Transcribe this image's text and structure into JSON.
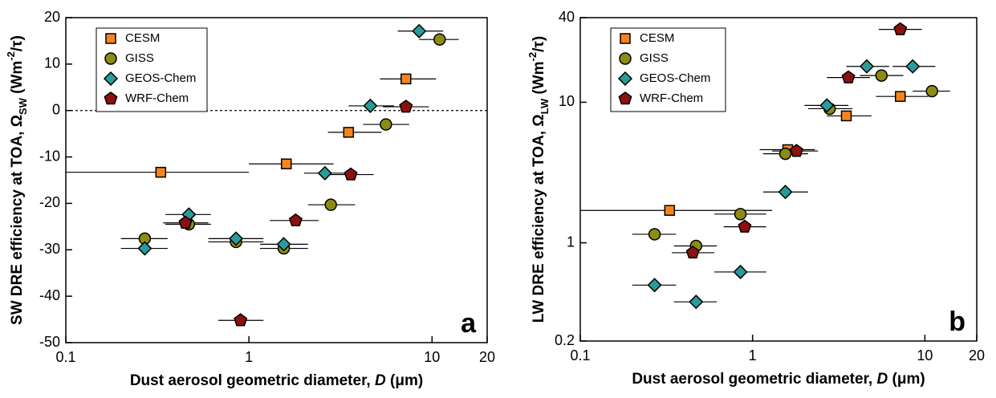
{
  "chart_data": [
    {
      "type": "scatter",
      "panel_label": "a",
      "xlabel": [
        {
          "text": "Dust aerosol geometric diameter, "
        },
        {
          "text": "D",
          "style": "italic"
        },
        {
          "text": " (μm)"
        }
      ],
      "ylabel": [
        {
          "text": "SW DRE efficiency at TOA, Ω"
        },
        {
          "text": "SW",
          "shift": "sub"
        },
        {
          "text": " (Wm"
        },
        {
          "text": "-2",
          "shift": "super"
        },
        {
          "text": "/τ)"
        }
      ],
      "xlim": [
        0.1,
        20
      ],
      "xticks": [
        0.1,
        1,
        10,
        20
      ],
      "xlog": true,
      "ylim": [
        -50,
        20
      ],
      "yticks": [
        20,
        10,
        0,
        -10,
        -20,
        -30,
        -40,
        -50
      ],
      "ylog": false,
      "reference_line": 0,
      "legend": "upper left",
      "series": [
        {
          "name": "CESM",
          "color": "#f7841f",
          "marker": "square",
          "x": [
            0.33,
            1.6,
            3.5,
            7.2
          ],
          "values": [
            -13.3,
            -11.5,
            -4.7,
            6.8
          ],
          "x_low": [
            0.1,
            1.0,
            2.7,
            5.2
          ],
          "x_high": [
            1.0,
            2.9,
            5.3,
            10.5
          ]
        },
        {
          "name": "GISS",
          "color": "#8c8c14",
          "marker": "circle",
          "x": [
            0.27,
            0.47,
            0.85,
            1.55,
            2.8,
            5.6,
            11
          ],
          "values": [
            -27.6,
            -24.5,
            -28.3,
            -29.7,
            -20.3,
            -3,
            15.3
          ],
          "x_low": [
            0.2,
            0.35,
            0.6,
            1.15,
            2.1,
            4.2,
            8.5
          ],
          "x_high": [
            0.36,
            0.62,
            1.2,
            2.1,
            3.8,
            7.5,
            14
          ]
        },
        {
          "name": "GEOS-Chem",
          "color": "#2a9a9a",
          "marker": "diamond",
          "x": [
            0.27,
            0.47,
            0.85,
            1.55,
            2.6,
            4.6,
            8.5
          ],
          "values": [
            -29.7,
            -22.4,
            -27.6,
            -28.8,
            -13.5,
            1,
            17.1
          ],
          "x_low": [
            0.2,
            0.35,
            0.6,
            1.15,
            2.0,
            3.5,
            6.5
          ],
          "x_high": [
            0.36,
            0.62,
            1.2,
            2.1,
            3.6,
            6.2,
            11.5
          ]
        },
        {
          "name": "WRF-Chem",
          "color": "#8b1010",
          "marker": "pentagon",
          "x": [
            0.45,
            0.9,
            1.8,
            3.6,
            7.2
          ],
          "values": [
            -24.2,
            -45.2,
            -23.7,
            -13.8,
            0.8
          ],
          "x_low": [
            0.34,
            0.68,
            1.3,
            2.7,
            5.4
          ],
          "x_high": [
            0.6,
            1.2,
            2.4,
            4.8,
            9.6
          ]
        }
      ]
    },
    {
      "type": "scatter",
      "panel_label": "b",
      "xlabel": [
        {
          "text": "Dust aerosol geometric diameter, "
        },
        {
          "text": "D",
          "style": "italic"
        },
        {
          "text": " (μm)"
        }
      ],
      "ylabel": [
        {
          "text": "LW DRE efficiency at TOA, Ω"
        },
        {
          "text": "LW",
          "shift": "sub"
        },
        {
          "text": " (Wm"
        },
        {
          "text": "-2",
          "shift": "super"
        },
        {
          "text": "/τ)"
        }
      ],
      "xlim": [
        0.1,
        20
      ],
      "xticks": [
        0.1,
        1,
        10,
        20
      ],
      "xlog": true,
      "ylim": [
        0.2,
        40
      ],
      "yticks": [
        0.2,
        1,
        10,
        40
      ],
      "ylog": true,
      "legend": "upper left",
      "series": [
        {
          "name": "CESM",
          "color": "#f7841f",
          "marker": "square",
          "x": [
            0.33,
            1.6,
            3.5,
            7.2
          ],
          "values": [
            1.7,
            4.6,
            8,
            11
          ],
          "x_low": [
            0.1,
            1.1,
            2.7,
            5.2
          ],
          "x_high": [
            1.3,
            2.3,
            4.9,
            10.5
          ]
        },
        {
          "name": "GISS",
          "color": "#8c8c14",
          "marker": "circle",
          "x": [
            0.27,
            0.47,
            0.85,
            1.55,
            2.8,
            5.6,
            11
          ],
          "values": [
            1.15,
            0.95,
            1.6,
            4.3,
            9,
            15.5,
            12
          ],
          "x_low": [
            0.2,
            0.35,
            0.6,
            1.15,
            2.1,
            4.2,
            8.5
          ],
          "x_high": [
            0.36,
            0.62,
            1.2,
            2.1,
            3.8,
            7.5,
            14
          ]
        },
        {
          "name": "GEOS-Chem",
          "color": "#2a9a9a",
          "marker": "diamond",
          "x": [
            0.27,
            0.47,
            0.85,
            1.55,
            2.7,
            4.6,
            8.5
          ],
          "values": [
            0.5,
            0.38,
            0.62,
            2.3,
            9.5,
            18,
            18
          ],
          "x_low": [
            0.2,
            0.35,
            0.6,
            1.15,
            2.0,
            3.5,
            6.5
          ],
          "x_high": [
            0.36,
            0.62,
            1.2,
            2.1,
            3.6,
            6.2,
            11.5
          ]
        },
        {
          "name": "WRF-Chem",
          "color": "#8b1010",
          "marker": "pentagon",
          "x": [
            0.45,
            0.9,
            1.8,
            3.6,
            7.2
          ],
          "values": [
            0.85,
            1.3,
            4.5,
            15,
            33
          ],
          "x_low": [
            0.34,
            0.68,
            1.3,
            2.7,
            5.4
          ],
          "x_high": [
            0.6,
            1.2,
            2.4,
            4.8,
            9.6
          ]
        }
      ]
    }
  ]
}
